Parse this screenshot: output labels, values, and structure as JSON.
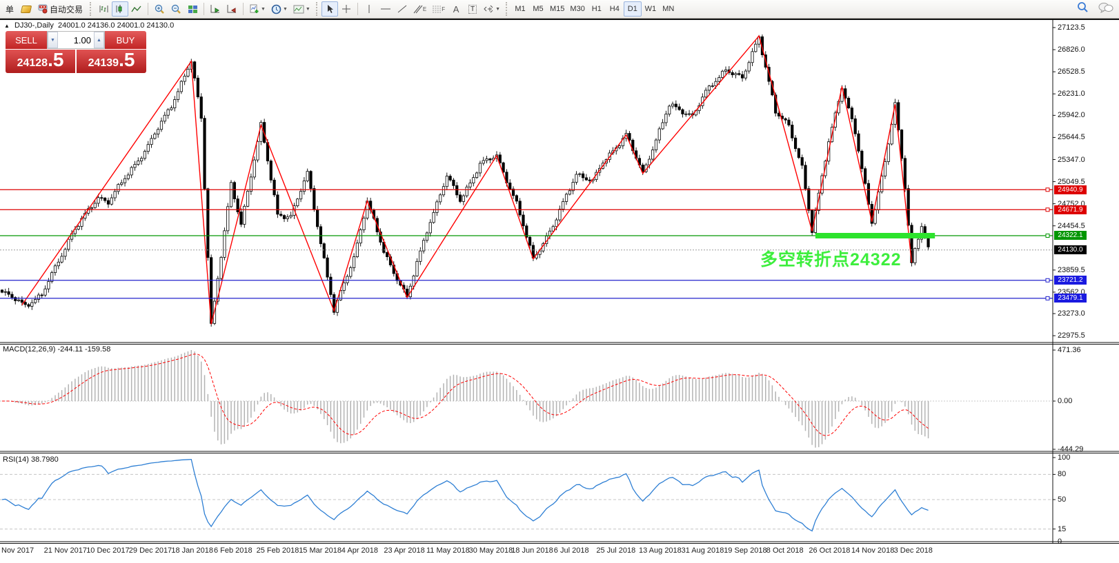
{
  "toolbar": {
    "new_order_label": "单",
    "autotrade_label": "自动交易",
    "timeframes": [
      "M1",
      "M5",
      "M15",
      "M30",
      "H1",
      "H4",
      "D1",
      "W1",
      "MN"
    ],
    "active_timeframe": "D1",
    "text_tool_label": "A",
    "label_tool_label": "T",
    "channel_tool_sub": "E",
    "fibo_tool_sub": "F"
  },
  "one_click": {
    "sell_label": "SELL",
    "buy_label": "BUY",
    "volume": "1.00",
    "sell_price_int": "24128",
    "sell_price_dec": ".5",
    "buy_price_int": "24139",
    "buy_price_dec": ".5"
  },
  "header": {
    "symbol_title": "DJ30-,Daily",
    "ohlc": "24001.0 24136.0 24001.0 24130.0"
  },
  "indicators": {
    "macd_label": "MACD(12,26,9) -244.11 -159.58",
    "rsi_label": "RSI(14) 38.7980"
  },
  "annotation": {
    "text": "多空转折点24322",
    "color": "#3dee3d"
  },
  "chart_data": {
    "type": "candlestick",
    "symbol": "DJ30-",
    "timeframe": "Daily",
    "bars": 280,
    "ohlc_last": {
      "open": 24001.0,
      "high": 24136.0,
      "low": 24001.0,
      "close": 24130.0
    },
    "price_axis_ticks": [
      27123.5,
      26826.0,
      26528.5,
      26231.0,
      25942.0,
      25644.5,
      25347.0,
      25049.5,
      24752.0,
      24454.5,
      23859.5,
      23562.0,
      23273.0,
      22975.5
    ],
    "waypoints": [
      [
        0,
        23560
      ],
      [
        7,
        23390
      ],
      [
        12,
        23520
      ],
      [
        21,
        24350
      ],
      [
        29,
        24840
      ],
      [
        32,
        24780
      ],
      [
        44,
        25530
      ],
      [
        51,
        26080
      ],
      [
        57,
        26670
      ],
      [
        60,
        25900
      ],
      [
        63,
        23130
      ],
      [
        69,
        25000
      ],
      [
        72,
        24480
      ],
      [
        78,
        25810
      ],
      [
        83,
        24600
      ],
      [
        87,
        24590
      ],
      [
        92,
        25160
      ],
      [
        100,
        23310
      ],
      [
        106,
        24030
      ],
      [
        110,
        24790
      ],
      [
        115,
        24100
      ],
      [
        122,
        23490
      ],
      [
        128,
        24400
      ],
      [
        134,
        25120
      ],
      [
        138,
        24800
      ],
      [
        144,
        25280
      ],
      [
        149,
        25400
      ],
      [
        155,
        24750
      ],
      [
        160,
        24010
      ],
      [
        166,
        24450
      ],
      [
        173,
        25160
      ],
      [
        178,
        25050
      ],
      [
        181,
        25310
      ],
      [
        188,
        25680
      ],
      [
        193,
        25160
      ],
      [
        201,
        26075
      ],
      [
        208,
        25940
      ],
      [
        212,
        26250
      ],
      [
        218,
        26570
      ],
      [
        223,
        26430
      ],
      [
        228,
        27010
      ],
      [
        233,
        25980
      ],
      [
        237,
        25800
      ],
      [
        241,
        25250
      ],
      [
        244,
        24380
      ],
      [
        249,
        25600
      ],
      [
        253,
        26330
      ],
      [
        257,
        25700
      ],
      [
        260,
        25000
      ],
      [
        262,
        24510
      ],
      [
        266,
        25300
      ],
      [
        269,
        26090
      ],
      [
        272,
        25000
      ],
      [
        274,
        23960
      ],
      [
        277,
        24450
      ],
      [
        279,
        24130
      ]
    ],
    "zigzag": [
      [
        6,
        23390
      ],
      [
        57,
        26670
      ],
      [
        63,
        23130
      ],
      [
        78,
        25810
      ],
      [
        100,
        23310
      ],
      [
        110,
        24790
      ],
      [
        122,
        23490
      ],
      [
        149,
        25400
      ],
      [
        160,
        24010
      ],
      [
        188,
        25680
      ],
      [
        193,
        25160
      ],
      [
        228,
        27010
      ],
      [
        244,
        24380
      ],
      [
        253,
        26330
      ],
      [
        262,
        24510
      ],
      [
        269,
        26090
      ],
      [
        274,
        23960
      ]
    ],
    "levels": [
      {
        "price": 24940.9,
        "label": "24940.9",
        "color": "#dd0000",
        "tag": "#dd0000",
        "style": "solid"
      },
      {
        "price": 24671.9,
        "label": "24671.9",
        "color": "#dd0000",
        "tag": "#dd0000",
        "style": "solid"
      },
      {
        "price": 24322.1,
        "label": "24322.1",
        "color": "#009600",
        "tag": "#009600",
        "style": "solid"
      },
      {
        "price": 24130.0,
        "label": "24130.0",
        "color": "#9a9a9a",
        "tag": "#000000",
        "style": "dotted"
      },
      {
        "price": 23721.2,
        "label": "23721.2",
        "color": "#2222cc",
        "tag": "#1a1ae0",
        "style": "solid"
      },
      {
        "price": 23479.1,
        "label": "23479.1",
        "color": "#2222cc",
        "tag": "#1a1ae0",
        "style": "solid"
      }
    ],
    "highlight_bar": {
      "price": 24322.1,
      "from_bar": 245,
      "to_bar": 281,
      "color": "#2ce32c"
    },
    "macd_axis": [
      "471.36",
      "0.00",
      "-444.29"
    ],
    "rsi_axis": [
      "100",
      "80",
      "50",
      "15",
      "0"
    ],
    "rsi_gridlines": [
      80,
      50,
      15
    ],
    "date_labels": [
      "Nov 2017",
      "21 Nov 2017",
      "10 Dec 2017",
      "29 Dec 2017",
      "18 Jan 2018",
      "6 Feb 2018",
      "25 Feb 2018",
      "15 Mar 2018",
      "4 Apr 2018",
      "23 Apr 2018",
      "11 May 2018",
      "30 May 2018",
      "18 Jun 2018",
      "6 Jul 2018",
      "25 Jul 2018",
      "13 Aug 2018",
      "31 Aug 2018",
      "19 Sep 2018",
      "8 Oct 2018",
      "26 Oct 2018",
      "14 Nov 2018",
      "3 Dec 2018"
    ]
  }
}
